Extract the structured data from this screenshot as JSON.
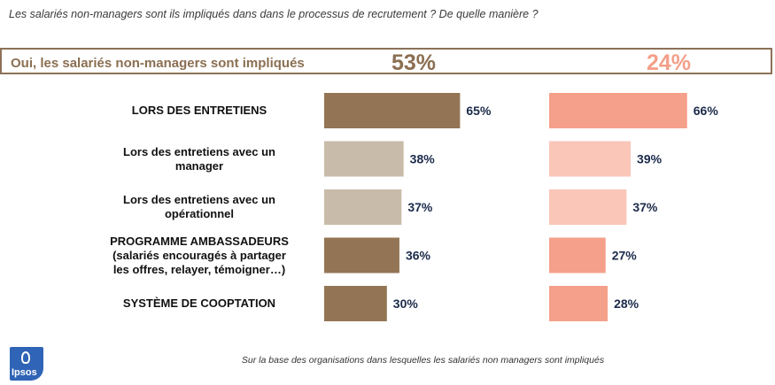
{
  "question": "Les salariés non-managers sont ils impliqués dans dans le processus de recrutement ? De quelle manière ?",
  "banner": {
    "label": "Oui, les salariés non-managers sont impliqués",
    "group_a_pct": "53%",
    "group_b_pct": "24%"
  },
  "footnote": "Sur la base des organisations dans lesquelles les salariés non managers sont impliqués",
  "logo": {
    "text": "Ipsos"
  },
  "colors": {
    "a_dark": "#937555",
    "a_light": "#c9bbaa",
    "b_dark": "#f5a08a",
    "b_light": "#f9c6b8",
    "label": "#1b2a4a"
  },
  "chart_data": {
    "type": "bar",
    "orientation": "horizontal",
    "categories": [
      [
        "LORS DES ENTRETIENS"
      ],
      [
        "Lors des entretiens avec un",
        "manager"
      ],
      [
        "Lors des entretiens avec un",
        "opérationnel"
      ],
      [
        "PROGRAMME AMBASSADEURS",
        "(salariés encouragés à partager",
        "les offres, relayer, témoigner…)"
      ],
      [
        "SYSTÈME DE COOPTATION"
      ]
    ],
    "series": [
      {
        "values": [
          65,
          38,
          37,
          36,
          30
        ],
        "shade": [
          "dark",
          "light",
          "light",
          "dark",
          "dark"
        ]
      },
      {
        "values": [
          66,
          39,
          37,
          27,
          28
        ],
        "shade": [
          "dark",
          "light",
          "light",
          "dark",
          "dark"
        ]
      }
    ],
    "value_suffix": "%"
  }
}
